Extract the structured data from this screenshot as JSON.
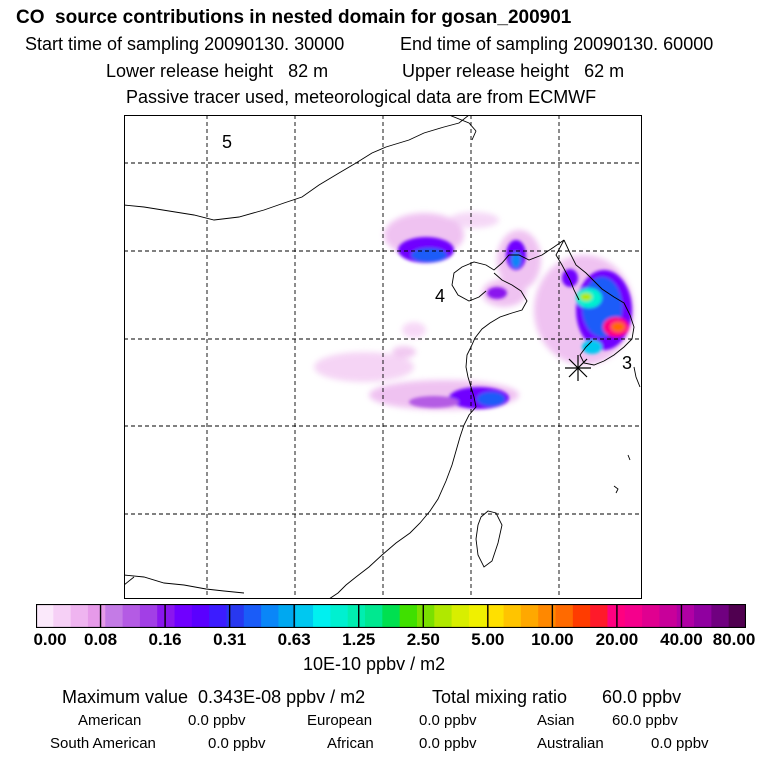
{
  "header": {
    "title": "CO  source contributions in nested domain for gosan_200901",
    "start": "Start time of sampling 20090130. 30000",
    "end": "End time of sampling 20090130. 60000",
    "lower": "Lower release height   82 m",
    "upper": "Upper release height   62 m",
    "tracer": "Passive tracer used, meteorological data are from ECMWF"
  },
  "map": {
    "labels": [
      "5",
      "4",
      "3"
    ],
    "station_icon": "asterisk-marker"
  },
  "colorbar": {
    "ticks": [
      "0.00",
      "0.08",
      "0.16",
      "0.31",
      "0.63",
      "1.25",
      "2.50",
      "5.00",
      "10.00",
      "20.00",
      "40.00",
      "80.00"
    ],
    "unit": "10E-10 ppbv / m2",
    "colors": [
      "#fbe9fb",
      "#f6d0f6",
      "#efb4f0",
      "#e69ae9",
      "#c47be6",
      "#b45be4",
      "#a23fe6",
      "#8a16ee",
      "#7000ff",
      "#5a00ff",
      "#3c1cff",
      "#2838f0",
      "#1a5cf8",
      "#0a86f8",
      "#00a8f0",
      "#00c8f0",
      "#00f0f0",
      "#00f0d0",
      "#00eeb0",
      "#00e890",
      "#00e050",
      "#40e000",
      "#7ae000",
      "#b0e800",
      "#d8ee00",
      "#f0f000",
      "#ffe000",
      "#ffc400",
      "#ffa800",
      "#ff8800",
      "#ff6a00",
      "#ff3c00",
      "#ff1a2a",
      "#ff0080",
      "#f5008c",
      "#e00090",
      "#c8009a",
      "#b000a4",
      "#9000a0",
      "#700080",
      "#500050"
    ]
  },
  "summary": {
    "max": "Maximum value  0.343E-08 ppbv / m2",
    "total": "Total mixing ratio       60.0 ppbv",
    "regions": [
      {
        "name": "American",
        "value": "0.0 ppbv"
      },
      {
        "name": "European",
        "value": "0.0 ppbv"
      },
      {
        "name": "Asian",
        "value": "60.0 ppbv"
      },
      {
        "name": "South American",
        "value": "0.0 ppbv"
      },
      {
        "name": "African",
        "value": "0.0 ppbv"
      },
      {
        "name": "Australian",
        "value": "0.0 ppbv"
      }
    ]
  }
}
